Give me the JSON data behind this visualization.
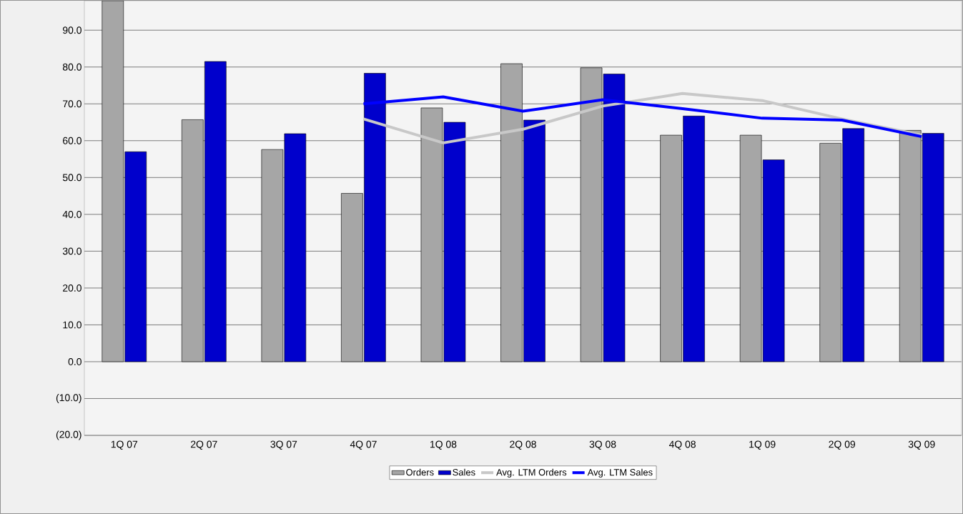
{
  "chart_data": {
    "type": "bar",
    "categories": [
      "1Q 07",
      "2Q 07",
      "3Q 07",
      "4Q 07",
      "1Q 08",
      "2Q 08",
      "3Q 08",
      "4Q 08",
      "1Q 09",
      "2Q 09",
      "3Q 09"
    ],
    "series": [
      {
        "name": "Orders",
        "color": "#a6a6a6",
        "values": [
          98,
          65.7,
          57.6,
          45.7,
          68.9,
          80.9,
          79.8,
          61.5,
          61.5,
          59.3,
          62.8
        ]
      },
      {
        "name": "Sales",
        "color": "#0000cc",
        "values": [
          57.0,
          81.5,
          61.9,
          78.3,
          65.0,
          65.6,
          78.1,
          66.7,
          54.8,
          63.3,
          62.0
        ]
      },
      {
        "name": "Avg. LTM Orders",
        "type": "line",
        "color": "#c8c8c8",
        "values": [
          null,
          null,
          null,
          65.9,
          59.4,
          63.1,
          69.4,
          72.8,
          70.9,
          65.9,
          61.5
        ]
      },
      {
        "name": "Avg. LTM Sales",
        "type": "line",
        "color": "#0000ff",
        "values": [
          null,
          null,
          null,
          70.0,
          71.9,
          68.0,
          71.1,
          68.7,
          66.1,
          65.6,
          61.1
        ]
      }
    ],
    "ylim": [
      -20,
      98
    ],
    "yticks": [
      {
        "value": -20,
        "label": "(20.0)"
      },
      {
        "value": -10,
        "label": "(10.0)"
      },
      {
        "value": 0,
        "label": "0.0"
      },
      {
        "value": 10,
        "label": "10.0"
      },
      {
        "value": 20,
        "label": "20.0"
      },
      {
        "value": 30,
        "label": "30.0"
      },
      {
        "value": 40,
        "label": "40.0"
      },
      {
        "value": 50,
        "label": "50.0"
      },
      {
        "value": 60,
        "label": "60.0"
      },
      {
        "value": 70,
        "label": "70.0"
      },
      {
        "value": 80,
        "label": "80.0"
      },
      {
        "value": 90,
        "label": "90.0"
      }
    ],
    "grid": "y",
    "legend": "bottom"
  }
}
